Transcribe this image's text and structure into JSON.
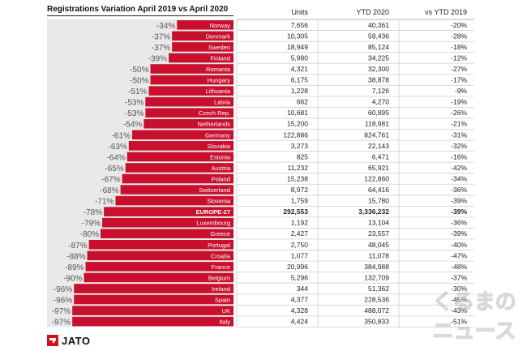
{
  "chart_data": {
    "type": "bar",
    "title": "Registrations Variation April 2019 vs April 2020",
    "columns": [
      "Units",
      "YTD 2020",
      "vs YTD 2019"
    ],
    "bar_color": "#c8102e",
    "rows": [
      {
        "country": "Norway",
        "variation": "-34%",
        "value": -34,
        "units": "7,656",
        "ytd2020": "40,361",
        "vs_ytd2019": "-20%"
      },
      {
        "country": "Denmark",
        "variation": "-37%",
        "value": -37,
        "units": "10,305",
        "ytd2020": "59,436",
        "vs_ytd2019": "-28%"
      },
      {
        "country": "Sweden",
        "variation": "-37%",
        "value": -37,
        "units": "18,949",
        "ytd2020": "85,124",
        "vs_ytd2019": "-18%"
      },
      {
        "country": "Finland",
        "variation": "-39%",
        "value": -39,
        "units": "5,980",
        "ytd2020": "34,225",
        "vs_ytd2019": "-12%"
      },
      {
        "country": "Romania",
        "variation": "-50%",
        "value": -50,
        "units": "4,321",
        "ytd2020": "32,300",
        "vs_ytd2019": "-27%"
      },
      {
        "country": "Hungary",
        "variation": "-50%",
        "value": -50,
        "units": "6,175",
        "ytd2020": "38,878",
        "vs_ytd2019": "-17%"
      },
      {
        "country": "Lithuania",
        "variation": "-51%",
        "value": -51,
        "units": "1,228",
        "ytd2020": "7,126",
        "vs_ytd2019": "-9%"
      },
      {
        "country": "Latvia",
        "variation": "-53%",
        "value": -53,
        "units": "662",
        "ytd2020": "4,270",
        "vs_ytd2019": "-19%"
      },
      {
        "country": "Czech Rep.",
        "variation": "-53%",
        "value": -53,
        "units": "10,681",
        "ytd2020": "60,895",
        "vs_ytd2019": "-26%"
      },
      {
        "country": "Netherlands",
        "variation": "-54%",
        "value": -54,
        "units": "15,200",
        "ytd2020": "118,981",
        "vs_ytd2019": "-21%"
      },
      {
        "country": "Germany",
        "variation": "-61%",
        "value": -61,
        "units": "122,886",
        "ytd2020": "824,761",
        "vs_ytd2019": "-31%"
      },
      {
        "country": "Slovakia",
        "variation": "-63%",
        "value": -63,
        "units": "3,273",
        "ytd2020": "22,143",
        "vs_ytd2019": "-32%"
      },
      {
        "country": "Estonia",
        "variation": "-64%",
        "value": -64,
        "units": "825",
        "ytd2020": "6,471",
        "vs_ytd2019": "-16%"
      },
      {
        "country": "Austria",
        "variation": "-65%",
        "value": -65,
        "units": "11,232",
        "ytd2020": "65,921",
        "vs_ytd2019": "-42%"
      },
      {
        "country": "Poland",
        "variation": "-67%",
        "value": -67,
        "units": "15,238",
        "ytd2020": "122,860",
        "vs_ytd2019": "-34%"
      },
      {
        "country": "Switzerland",
        "variation": "-68%",
        "value": -68,
        "units": "8,972",
        "ytd2020": "64,416",
        "vs_ytd2019": "-36%"
      },
      {
        "country": "Slovenia",
        "variation": "-71%",
        "value": -71,
        "units": "1,759",
        "ytd2020": "15,780",
        "vs_ytd2019": "-39%"
      },
      {
        "country": "EUROPE-27",
        "variation": "-78%",
        "value": -78,
        "units": "292,553",
        "ytd2020": "3,336,232",
        "vs_ytd2019": "-39%",
        "highlight": true
      },
      {
        "country": "Luxembourg",
        "variation": "-79%",
        "value": -79,
        "units": "1,192",
        "ytd2020": "13,104",
        "vs_ytd2019": "-36%"
      },
      {
        "country": "Greece",
        "variation": "-80%",
        "value": -80,
        "units": "2,427",
        "ytd2020": "23,557",
        "vs_ytd2019": "-39%"
      },
      {
        "country": "Portugal",
        "variation": "-87%",
        "value": -87,
        "units": "2,750",
        "ytd2020": "48,045",
        "vs_ytd2019": "-40%"
      },
      {
        "country": "Croatia",
        "variation": "-88%",
        "value": -88,
        "units": "1,077",
        "ytd2020": "11,078",
        "vs_ytd2019": "-47%"
      },
      {
        "country": "France",
        "variation": "-89%",
        "value": -89,
        "units": "20,996",
        "ytd2020": "384,988",
        "vs_ytd2019": "-48%"
      },
      {
        "country": "Belgium",
        "variation": "-90%",
        "value": -90,
        "units": "5,296",
        "ytd2020": "132,709",
        "vs_ytd2019": "-37%"
      },
      {
        "country": "Ireland",
        "variation": "-96%",
        "value": -96,
        "units": "344",
        "ytd2020": "51,362",
        "vs_ytd2019": "-30%"
      },
      {
        "country": "Spain",
        "variation": "-96%",
        "value": -96,
        "units": "4,377",
        "ytd2020": "228,536",
        "vs_ytd2019": "-45%"
      },
      {
        "country": "UK",
        "variation": "-97%",
        "value": -97,
        "units": "4,328",
        "ytd2020": "488,072",
        "vs_ytd2019": "-43%"
      },
      {
        "country": "Italy",
        "variation": "-97%",
        "value": -97,
        "units": "4,424",
        "ytd2020": "350,833",
        "vs_ytd2019": "-51%"
      }
    ]
  },
  "brand": {
    "logo_text": "JATO",
    "watermark_text": "くるまのニュース"
  }
}
